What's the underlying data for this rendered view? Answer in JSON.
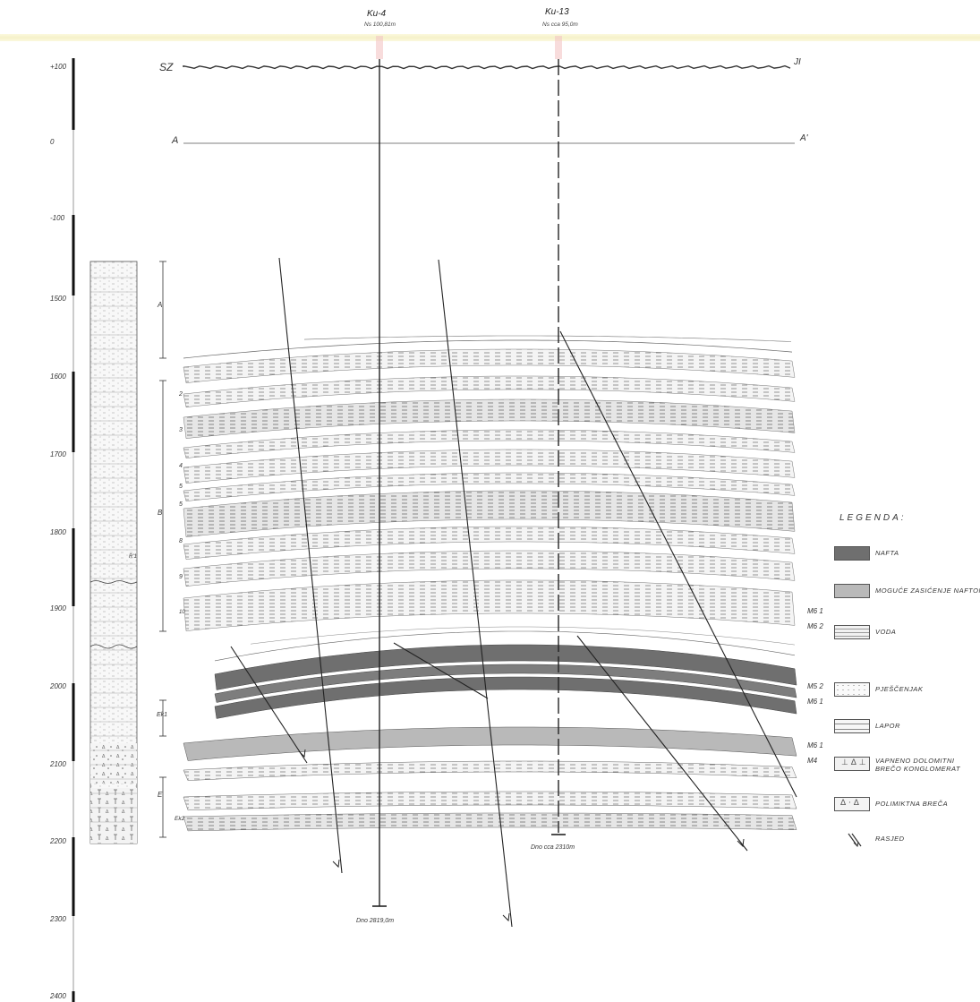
{
  "header": {
    "left_direction": "SZ",
    "right_direction": "JI",
    "section_start": "A",
    "section_end": "A'"
  },
  "wells": [
    {
      "name": "Ku-4",
      "elevation": "Ns 100,81m",
      "bottom": "Dno 2819,0m"
    },
    {
      "name": "Ku-13",
      "elevation": "Ns cca 95,0m",
      "bottom": "Dno cca 2310m"
    }
  ],
  "depth_scale": {
    "labels": [
      "+100",
      "0",
      "-100",
      "1500",
      "1600",
      "1700",
      "1800",
      "1900",
      "2000",
      "2100",
      "2200",
      "2300",
      "2400"
    ]
  },
  "column": {
    "marker": "R'1",
    "units": [
      "A",
      "B",
      "Ek1",
      "E",
      "Ek2"
    ]
  },
  "layer_numbers": [
    "2",
    "3",
    "4",
    "5",
    "5",
    "8",
    "9",
    "10"
  ],
  "boundaries": [
    {
      "top": "M6 1",
      "bottom": "M6 2"
    },
    {
      "top": "M5 2",
      "bottom": "M6 1"
    },
    {
      "top": "M6 1",
      "bottom": "M4"
    }
  ],
  "legend": {
    "title": "LEGENDA:",
    "items": [
      {
        "id": "nafta",
        "label": "NAFTA",
        "pattern": "dark"
      },
      {
        "id": "moguce",
        "label": "MOGUĆE ZASIĆENJE NAFTOM",
        "pattern": "medium"
      },
      {
        "id": "voda",
        "label": "VODA",
        "pattern": "dashes"
      },
      {
        "id": "pjescenjak",
        "label": "PJEŠČENJAK",
        "pattern": "dots"
      },
      {
        "id": "lapor",
        "label": "LAPOR",
        "pattern": "lapor"
      },
      {
        "id": "vapneno",
        "label": "VAPNENO DOLOMITNI BREČO KONGLOMERAT",
        "pattern": "vapneno"
      },
      {
        "id": "polimiktna",
        "label": "POLIMIKTNA BREČA",
        "pattern": "polimiktna"
      },
      {
        "id": "rasjed",
        "label": "RASJED",
        "pattern": "fault"
      }
    ]
  },
  "colors": {
    "oil": "#6f6f6f",
    "possible_oil": "#b9b9b9",
    "water_dash": "#8a8a8a",
    "line": "#2a2a2a",
    "scan_band": "#f3efc0"
  }
}
